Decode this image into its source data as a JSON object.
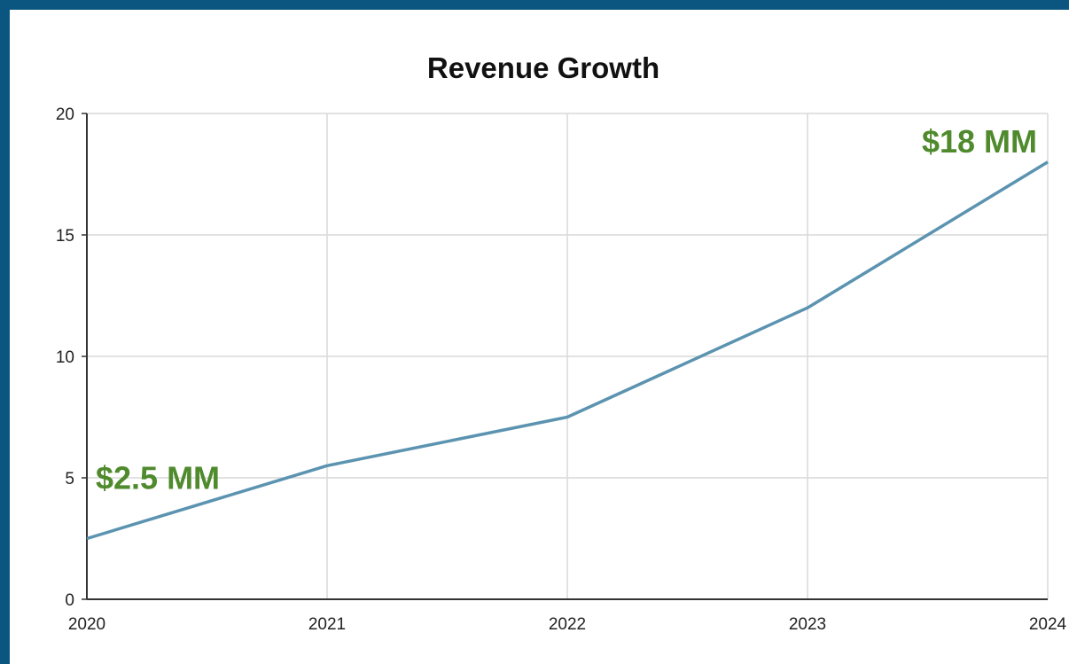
{
  "chart_data": {
    "type": "line",
    "title": "Revenue Growth",
    "xlabel": "",
    "ylabel": "",
    "x": [
      "2020",
      "2021",
      "2022",
      "2023",
      "2024"
    ],
    "series": [
      {
        "values": [
          2.5,
          5.5,
          7.5,
          12,
          18
        ]
      }
    ],
    "ylim": [
      0,
      20
    ],
    "yticks": [
      "0",
      "5",
      "10",
      "15",
      "20"
    ],
    "grid": true,
    "legend": "none",
    "annotations": [
      {
        "text": "$2.5 MM",
        "x": "2020",
        "y": 2.5
      },
      {
        "text": "$18 MM",
        "x": "2024",
        "y": 18
      }
    ],
    "colors": {
      "line": "#5b93b0",
      "annotation": "#4f8a2d",
      "grid": "#d9d9d9",
      "axis": "#333333",
      "border": "#0b5680"
    }
  }
}
